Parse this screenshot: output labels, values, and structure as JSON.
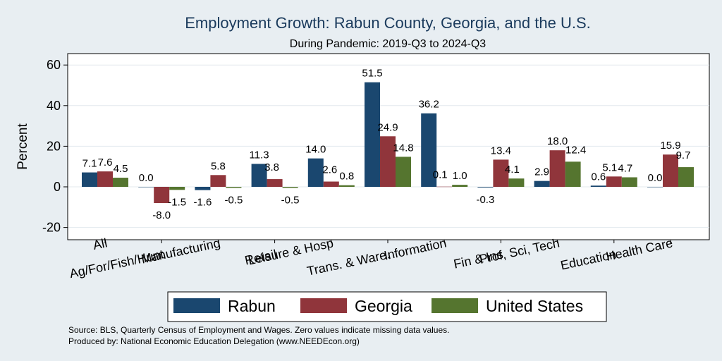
{
  "chart_data": {
    "type": "bar",
    "title": "Employment Growth: Rabun County, Georgia, and the U.S.",
    "subtitle": "During Pandemic: 2019-Q3 to 2024-Q3",
    "ylabel": "Percent",
    "xlabel": "",
    "ylim": [
      -26,
      66
    ],
    "yticks": [
      -20,
      0,
      20,
      40,
      60
    ],
    "grid": true,
    "legend": "bottom",
    "categories": [
      "All",
      "Ag/For/Fish/Hunt",
      "Manufacturing",
      "Retail",
      "Leisure & Hosp",
      "Trans. & Ware.",
      "Information",
      "Fin & Ins",
      "Prof, Sci, Tech",
      "Education",
      "Health Care"
    ],
    "series": [
      {
        "name": "Rabun",
        "color": "#1a476f",
        "values": [
          7.1,
          0.0,
          -1.6,
          11.3,
          14.0,
          51.5,
          36.2,
          -0.3,
          2.9,
          0.6,
          0.0
        ]
      },
      {
        "name": "Georgia",
        "color": "#90353b",
        "values": [
          7.6,
          -8.0,
          5.8,
          3.8,
          2.6,
          24.9,
          0.1,
          13.4,
          18.0,
          5.1,
          15.9
        ]
      },
      {
        "name": "United States",
        "color": "#55752f",
        "values": [
          4.5,
          -1.5,
          -0.5,
          -0.5,
          0.8,
          14.8,
          1.0,
          4.1,
          12.4,
          4.7,
          9.7
        ]
      }
    ],
    "notes": [
      "Source: BLS, Quarterly Census of Employment and Wages. Zero values indicate missing data values.",
      "Produced by: National Economic Education Delegation (www.NEEDEcon.org)"
    ]
  }
}
